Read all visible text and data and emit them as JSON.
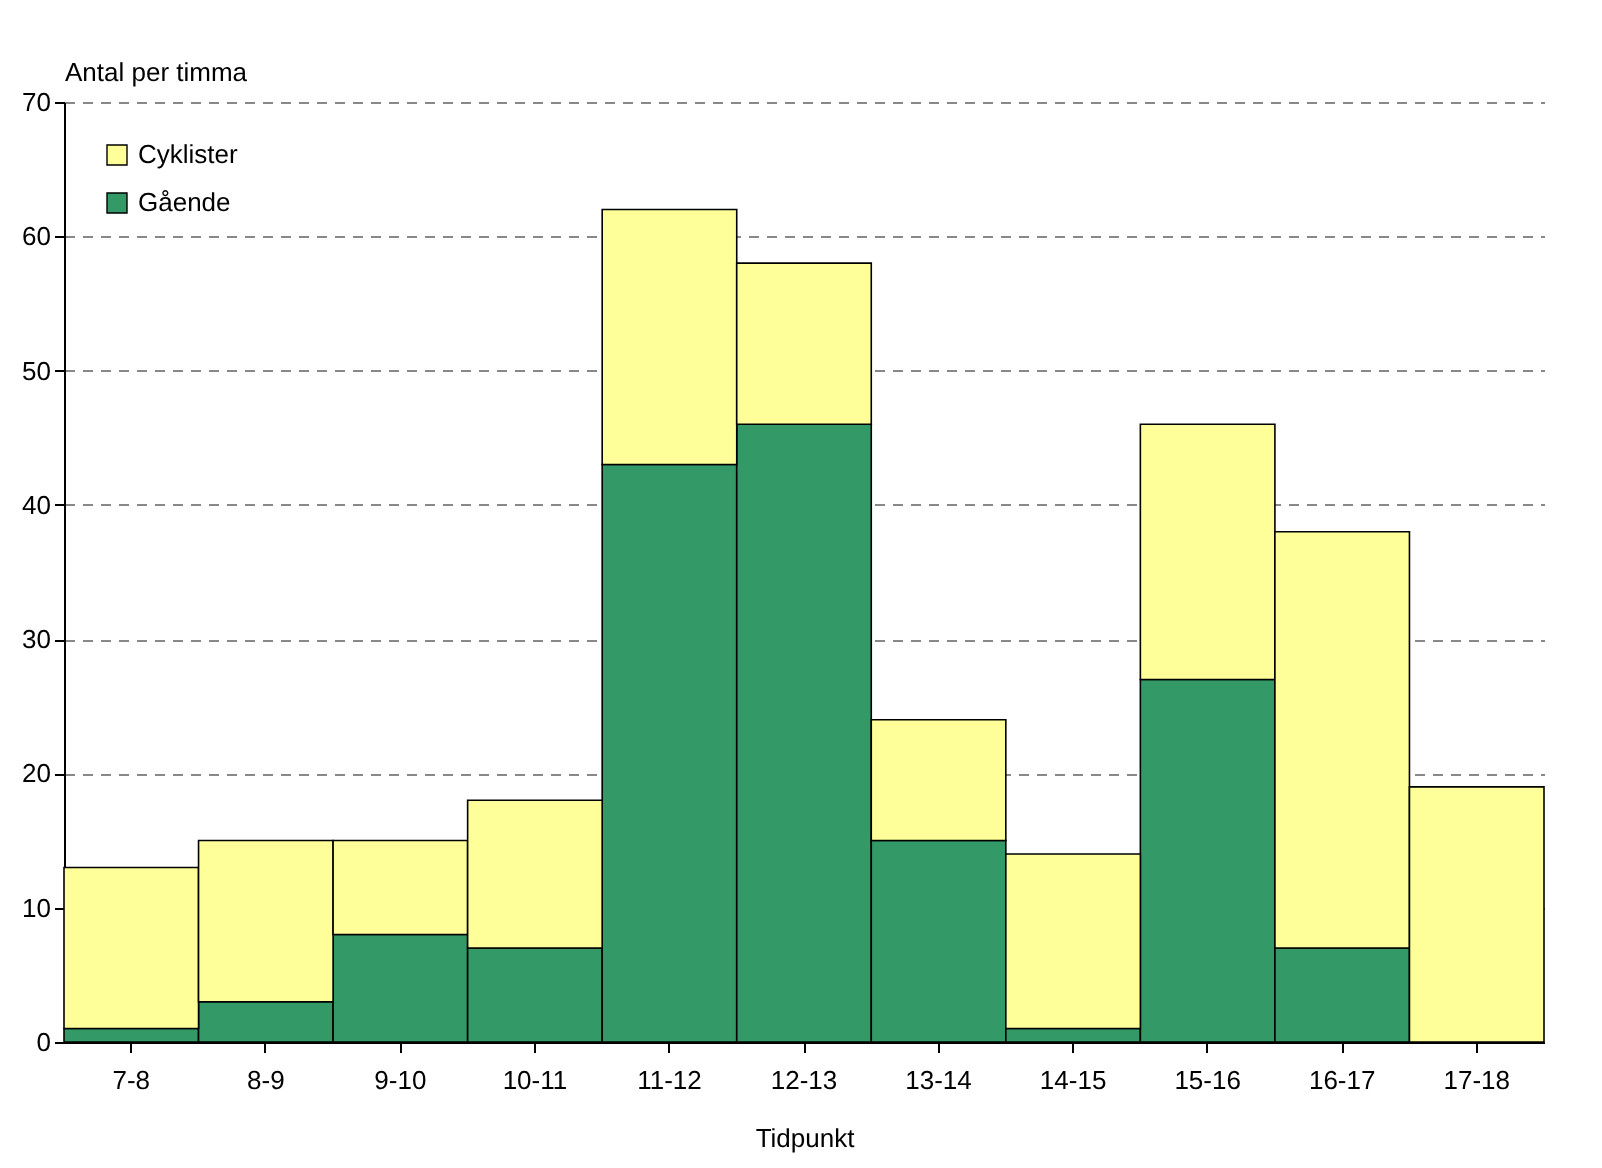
{
  "chart_data": {
    "type": "bar",
    "stacked": true,
    "xlabel": "Tidpunkt",
    "ylabel": "Antal per timma",
    "categories": [
      "7-8",
      "8-9",
      "9-10",
      "10-11",
      "11-12",
      "12-13",
      "13-14",
      "14-15",
      "15-16",
      "16-17",
      "17-18"
    ],
    "series": [
      {
        "name": "Gående",
        "color": "#339966",
        "values": [
          1,
          3,
          8,
          7,
          43,
          46,
          15,
          1,
          27,
          7,
          0
        ]
      },
      {
        "name": "Cyklister",
        "color": "#ffff99",
        "values": [
          12,
          12,
          7,
          11,
          19,
          12,
          9,
          13,
          19,
          31,
          19
        ]
      }
    ],
    "ylim": [
      0,
      70
    ],
    "yticks": [
      0,
      10,
      20,
      30,
      40,
      50,
      60,
      70
    ],
    "grid": "y",
    "legend": "top left"
  }
}
